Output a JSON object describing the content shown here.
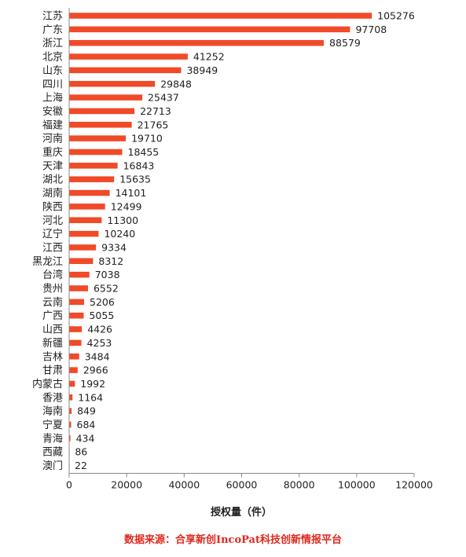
{
  "chart_data": {
    "type": "bar",
    "orientation": "horizontal",
    "categories": [
      "江苏",
      "广东",
      "浙江",
      "北京",
      "山东",
      "四川",
      "上海",
      "安徽",
      "福建",
      "河南",
      "重庆",
      "天津",
      "湖北",
      "湖南",
      "陕西",
      "河北",
      "辽宁",
      "江西",
      "黑龙江",
      "台湾",
      "贵州",
      "云南",
      "广西",
      "山西",
      "新疆",
      "吉林",
      "甘肃",
      "内蒙古",
      "香港",
      "海南",
      "宁夏",
      "青海",
      "西藏",
      "澳门"
    ],
    "values": [
      105276,
      97708,
      88579,
      41252,
      38949,
      29848,
      25437,
      22713,
      21765,
      19710,
      18455,
      16843,
      15635,
      14101,
      12499,
      11300,
      10240,
      9334,
      8312,
      7038,
      6552,
      5206,
      5055,
      4426,
      4253,
      3484,
      2966,
      1992,
      1164,
      849,
      684,
      434,
      86,
      22
    ],
    "value_labels": [
      "105276",
      "97708",
      "88579",
      "41252",
      "38949",
      "29848",
      "25437",
      "22713",
      "21765",
      "19710",
      "18455",
      "16843",
      "15635",
      "14101",
      "12499",
      "11300",
      "10240",
      "9334",
      "8312",
      "7038",
      "6552",
      "5206",
      "5055",
      "4426",
      "4253",
      "3484",
      "2966",
      "1992",
      "1164",
      "849",
      "684",
      "434",
      "86",
      "22"
    ],
    "xlabel": "授权量（件）",
    "ylabel": "",
    "xlim": [
      0,
      120000
    ],
    "x_ticks": [
      "0",
      "20000",
      "40000",
      "60000",
      "80000",
      "100000",
      "120000"
    ],
    "grid": false,
    "legend": "none",
    "bar_color": "#f04a28"
  },
  "source_note": "数据来源：合享新创IncoPat科技创新情报平台"
}
